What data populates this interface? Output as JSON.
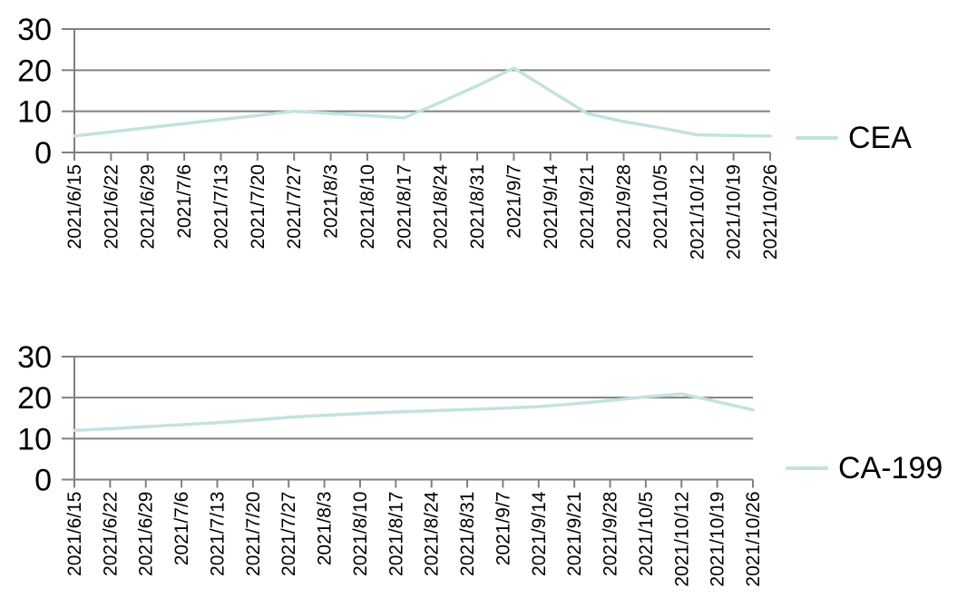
{
  "chart_data": [
    {
      "type": "line",
      "title": "",
      "legend": "CEA",
      "legend_position": "right",
      "grid": true,
      "x": [
        "2021/6/15",
        "2021/6/22",
        "2021/6/29",
        "2021/7/6",
        "2021/7/13",
        "2021/7/20",
        "2021/7/27",
        "2021/8/3",
        "2021/8/10",
        "2021/8/17",
        "2021/8/24",
        "2021/8/31",
        "2021/9/7",
        "2021/9/14",
        "2021/9/21",
        "2021/9/28",
        "2021/10/5",
        "2021/10/12",
        "2021/10/19",
        "2021/10/26"
      ],
      "series": [
        {
          "name": "CEA",
          "values": [
            4,
            5,
            6,
            7,
            8,
            9,
            10,
            9.5,
            9,
            8.4,
            12.2,
            16.2,
            20.5,
            15,
            9.5,
            7.5,
            6,
            4.3,
            4.1,
            4
          ]
        }
      ],
      "ylim": [
        0,
        30
      ],
      "yticks": [
        0,
        10,
        20,
        30
      ],
      "line_color": "#c3e2e0",
      "grid_color": "#808080",
      "text_color": "#000000"
    },
    {
      "type": "line",
      "title": "",
      "legend": "CA-199",
      "legend_position": "right",
      "grid": true,
      "x": [
        "2021/6/15",
        "2021/6/22",
        "2021/6/29",
        "2021/7/6",
        "2021/7/13",
        "2021/7/20",
        "2021/7/27",
        "2021/8/3",
        "2021/8/10",
        "2021/8/17",
        "2021/8/24",
        "2021/8/31",
        "2021/9/7",
        "2021/9/14",
        "2021/9/21",
        "2021/9/28",
        "2021/10/5",
        "2021/10/12",
        "2021/10/19",
        "2021/10/26"
      ],
      "series": [
        {
          "name": "CA-199",
          "values": [
            12,
            12.4,
            12.9,
            13.4,
            13.9,
            14.5,
            15.2,
            15.7,
            16.1,
            16.5,
            16.8,
            17.1,
            17.4,
            17.8,
            18.5,
            19.3,
            20.2,
            20.9,
            19,
            17
          ]
        }
      ],
      "ylim": [
        0,
        30
      ],
      "yticks": [
        0,
        10,
        20,
        30
      ],
      "line_color": "#c3e2e0",
      "grid_color": "#808080",
      "text_color": "#000000"
    }
  ]
}
